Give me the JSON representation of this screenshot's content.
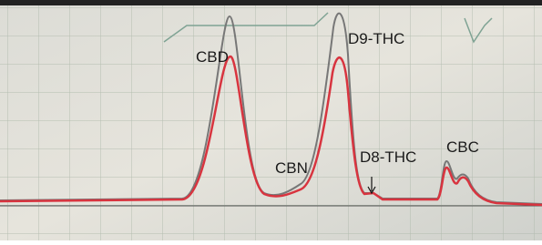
{
  "peaks": [
    {
      "label": "CBD"
    },
    {
      "label": "CBN"
    },
    {
      "label": "D9-THC"
    },
    {
      "label": "D8-THC"
    },
    {
      "label": "CBC"
    }
  ]
}
